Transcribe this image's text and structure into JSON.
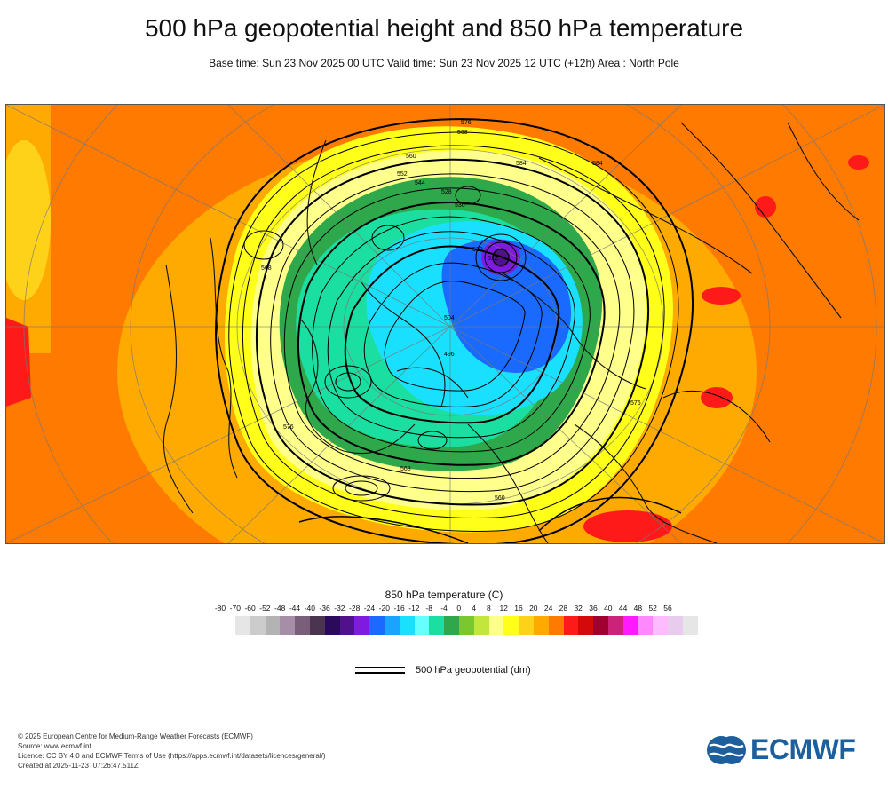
{
  "header": {
    "title": "500 hPa geopotential height and 850 hPa temperature",
    "subtitle": "Base time: Sun 23 Nov 2025 00 UTC Valid time: Sun 23 Nov 2025 12 UTC (+12h) Area : North Pole"
  },
  "map": {
    "contour_labels": [
      "576",
      "568",
      "584",
      "560",
      "552",
      "544",
      "536",
      "528",
      "520",
      "512",
      "504",
      "496",
      "568",
      "576",
      "584",
      "560",
      "568",
      "576"
    ]
  },
  "legend": {
    "title": "850 hPa temperature (C)",
    "ticks": [
      "-80",
      "-70",
      "-60",
      "-52",
      "-48",
      "-44",
      "-40",
      "-36",
      "-32",
      "-28",
      "-24",
      "-20",
      "-16",
      "-12",
      "-8",
      "-4",
      "0",
      "4",
      "8",
      "12",
      "16",
      "20",
      "24",
      "28",
      "32",
      "36",
      "40",
      "44",
      "48",
      "52",
      "56"
    ],
    "colors": [
      "#e6e6e6",
      "#cccccc",
      "#b3b3b3",
      "#a68ea6",
      "#7a5f7a",
      "#4a3450",
      "#2b0a5c",
      "#50128a",
      "#7f1ae0",
      "#1a6aff",
      "#1aa3ff",
      "#1ae0ff",
      "#66ffff",
      "#1adfa0",
      "#2ea84a",
      "#7ac82e",
      "#c2e63c",
      "#ffff8c",
      "#ffff1a",
      "#ffd21a",
      "#ffaa00",
      "#ff7a00",
      "#ff1a1a",
      "#d40a0a",
      "#a00030",
      "#cc2277",
      "#ff1aff",
      "#ff88ff",
      "#ffbbff",
      "#e8ccee",
      "#e6e6e6"
    ],
    "geopotential_label": "500 hPa geopotential (dm)"
  },
  "credits": {
    "line1": "© 2025 European Centre for Medium-Range Weather Forecasts (ECMWF)",
    "line2": "Source: www.ecmwf.int",
    "line3": "Licence: CC BY 4.0 and ECMWF Terms of Use (https://apps.ecmwf.int/datasets/licences/general/)",
    "line4": "Created at 2025-11-23T07:26:47.511Z"
  },
  "logo": {
    "text": "ECMWF",
    "color": "#1d5f9c"
  }
}
